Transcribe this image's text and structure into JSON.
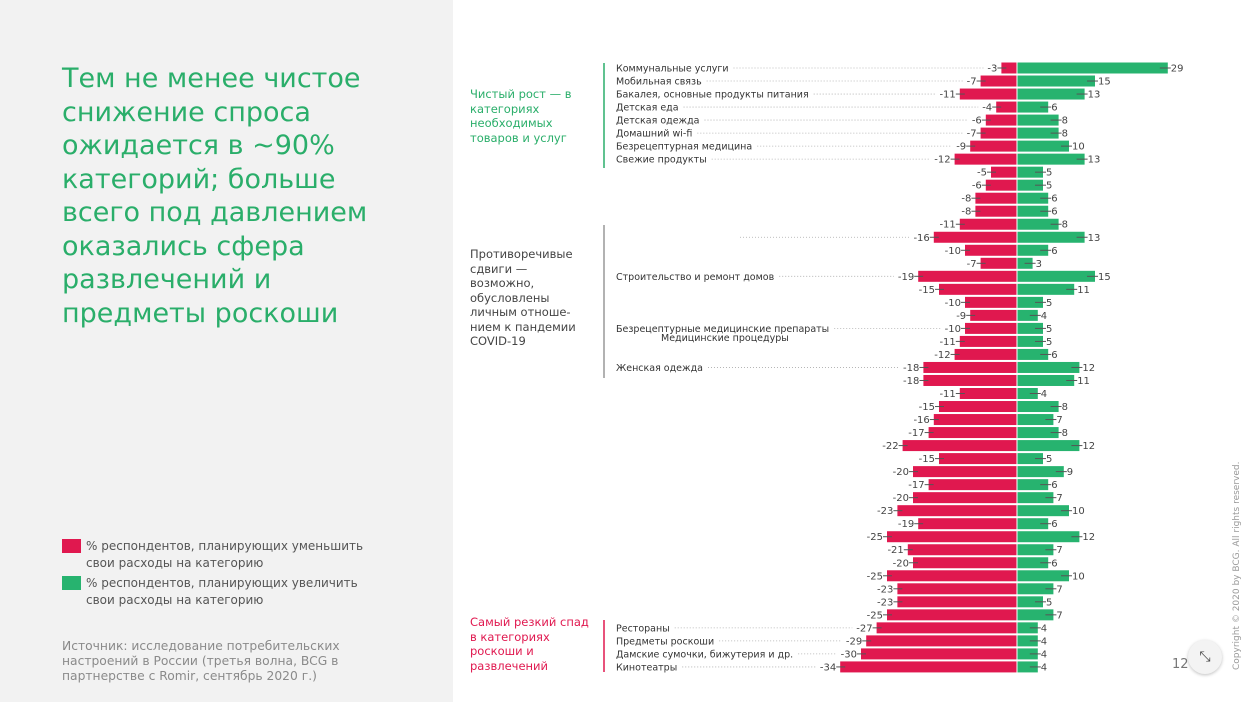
{
  "title": "Тем не менее чистое снижение спроса ожидается в ~90% категорий; больше всего под давлением оказались сфера развлечений и предметы роскоши",
  "legend": [
    {
      "label": "% респондентов, планирующих уменьшить свои расходы на категорию",
      "color": "#e0184f"
    },
    {
      "label": "% респондентов, планирующих увеличить свои расходы на категорию",
      "color": "#27b36f"
    }
  ],
  "source": "Источник: исследование потребительских настроений в России (третья волна, BCG в партнерстве с Romir, сентябрь 2020 г.)",
  "groups": [
    {
      "label": "Чистый рост — в категориях необходимых товаров и услуг",
      "color": "#2aae6a"
    },
    {
      "label": "Противоречивые сдвиги — возможно, обусловлены личным отноше-нием к пандемии COVID-19",
      "color": "#444444"
    },
    {
      "label": "Самый резкий спад в категориях роскоши и развлечений",
      "color": "#e0184f"
    }
  ],
  "page_number": "12",
  "copyright": "Copyright © 2020 by BCG. All rights reserved.",
  "collapse_icon": "collapse-arrows-icon",
  "chart_data": {
    "type": "bar",
    "orientation": "horizontal-diverging",
    "colors": {
      "decrease": "#e0184f",
      "increase": "#27b36f"
    },
    "categories": [
      "Коммунальные услуги",
      "Мобильная связь",
      "Бакалея, основные продукты питания",
      "Детская еда",
      "Детская одежда",
      "Домашний wi-fi",
      "Безрецептурная медицина",
      "Свежие продукты",
      "",
      "",
      "",
      "",
      "",
      "",
      "",
      "",
      "Строительство и ремонт домов",
      "",
      "",
      "",
      "Безрецептурные медицинские препараты",
      "Медицинские процедуры",
      "",
      "Женская одежда",
      "",
      "",
      "",
      "",
      "",
      "",
      "",
      "",
      "",
      "",
      "",
      "",
      "",
      "",
      "",
      "",
      "",
      "",
      "",
      "Рестораны",
      "Предметы роскоши",
      "Дамские сумочки, бижутерия и др.",
      "Кинотеатры"
    ],
    "series": [
      {
        "values": [
          -3,
          -7,
          -11,
          -4,
          -6,
          -7,
          -9,
          -12,
          -5,
          -6,
          -8,
          -8,
          -11,
          -16,
          -10,
          -7,
          -19,
          -15,
          -10,
          -9,
          -10,
          -11,
          -12,
          -18,
          -18,
          -11,
          -15,
          -16,
          -17,
          -22,
          -15,
          -20,
          -17,
          -20,
          -23,
          -19,
          -25,
          -21,
          -20,
          -25,
          -23,
          -23,
          -25,
          -27,
          -29,
          -30,
          -34
        ]
      },
      {
        "values": [
          29,
          15,
          13,
          6,
          8,
          8,
          10,
          13,
          5,
          5,
          6,
          6,
          8,
          13,
          6,
          3,
          15,
          11,
          5,
          4,
          5,
          5,
          6,
          12,
          11,
          4,
          8,
          7,
          8,
          12,
          5,
          9,
          6,
          7,
          10,
          6,
          12,
          7,
          6,
          10,
          7,
          5,
          7,
          4,
          4,
          4,
          4
        ]
      }
    ]
  }
}
